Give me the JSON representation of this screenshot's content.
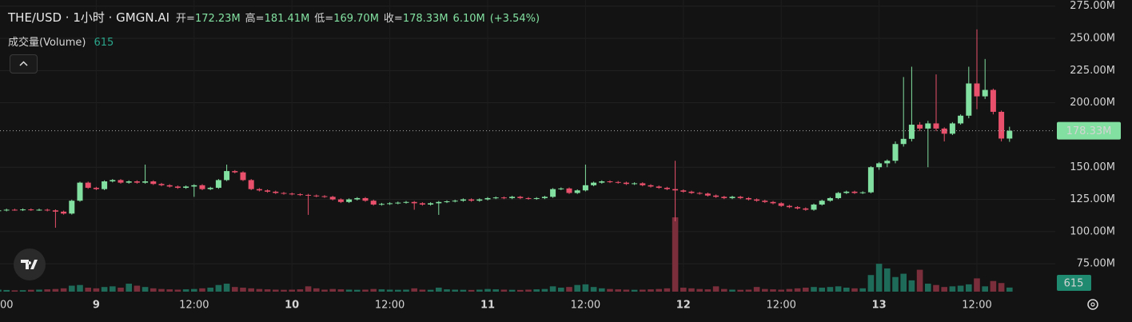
{
  "chart_data": {
    "type": "candlestick",
    "title": "THE/USD · 1小时 · GMGN.AI",
    "ohlc_names": {
      "open": "开=",
      "high": "高=",
      "low": "低=",
      "close": "收="
    },
    "ohlc_labels": {
      "open": "172.23M",
      "high": "181.41M",
      "low": "169.70M",
      "close": "178.33M"
    },
    "change": "6.10M",
    "change_pct": "(+3.54%)",
    "volume_label": "成交量(Volume)",
    "up_color": "#82e0a0",
    "down_color": "#e8506b",
    "volume_up_color": "#1e6b59",
    "volume_down_color": "#7a2d3b",
    "grid": true,
    "ylim": [
      53.4,
      279.8
    ],
    "yticks": [
      {
        "value": 275,
        "label": "275.00M"
      },
      {
        "value": 250,
        "label": "250.00M"
      },
      {
        "value": 225,
        "label": "225.00M"
      },
      {
        "value": 200,
        "label": "200.00M"
      },
      {
        "value": 150,
        "label": "150.00M"
      },
      {
        "value": 125,
        "label": "125.00M"
      },
      {
        "value": 100,
        "label": "100.00M"
      },
      {
        "value": 75,
        "label": "75.00M"
      }
    ],
    "categories": [
      "00",
      null,
      null,
      null,
      null,
      null,
      null,
      null,
      null,
      null,
      null,
      null,
      "9",
      null,
      null,
      null,
      null,
      null,
      null,
      null,
      null,
      null,
      null,
      null,
      "12:00",
      null,
      null,
      null,
      null,
      null,
      null,
      null,
      null,
      null,
      null,
      null,
      "10",
      null,
      null,
      null,
      null,
      null,
      null,
      null,
      null,
      null,
      null,
      null,
      "12:00",
      null,
      null,
      null,
      null,
      null,
      null,
      null,
      null,
      null,
      null,
      null,
      "11",
      null,
      null,
      null,
      null,
      null,
      null,
      null,
      null,
      null,
      null,
      null,
      "12:00",
      null,
      null,
      null,
      null,
      null,
      null,
      null,
      null,
      null,
      null,
      null,
      "12",
      null,
      null,
      null,
      null,
      null,
      null,
      null,
      null,
      null,
      null,
      null,
      "12:00",
      null,
      null,
      null,
      null,
      null,
      null,
      null,
      null,
      null,
      null,
      null,
      "13",
      null,
      null,
      null,
      null,
      null,
      null,
      null,
      null,
      null,
      null,
      null,
      "12:00",
      null,
      null,
      null,
      null
    ],
    "open": [
      116.2,
      116.5,
      117,
      116.8,
      117.2,
      116.9,
      117,
      116.5,
      115.5,
      114,
      124,
      138,
      134,
      133,
      139,
      140,
      138,
      139,
      138,
      139,
      137,
      136,
      135,
      134,
      135,
      136,
      133,
      134,
      140,
      147,
      146,
      140,
      133,
      132,
      131,
      130,
      129.5,
      129,
      128.5,
      128,
      127.5,
      127,
      125,
      123,
      125,
      126,
      124,
      121,
      121.5,
      122,
      122.5,
      123,
      122,
      121,
      122,
      123,
      123.5,
      124,
      125,
      124,
      125,
      126,
      126.5,
      126,
      127,
      126,
      125.5,
      126,
      127,
      133,
      133.5,
      130,
      132,
      136,
      138,
      139,
      138.5,
      138,
      137,
      137.5,
      136,
      135,
      134,
      133,
      132,
      131,
      130,
      129.5,
      128,
      127,
      126,
      127,
      126,
      125,
      124,
      123,
      122,
      120,
      119,
      118,
      117,
      121,
      124,
      126,
      130,
      131,
      130,
      130.5,
      150,
      153,
      155,
      168,
      172,
      183,
      180,
      184,
      180,
      176,
      184,
      190,
      215,
      205,
      210,
      193,
      172.23
    ],
    "high": [
      117.3,
      117.8,
      117.8,
      118,
      118,
      117.8,
      117.8,
      117.3,
      116.3,
      124.8,
      138.8,
      138.8,
      134.8,
      139.8,
      140.8,
      140.8,
      139.8,
      139.8,
      152,
      139.8,
      137.8,
      136.8,
      135.8,
      135.8,
      136.8,
      136.8,
      134.8,
      140.8,
      152,
      147.8,
      146.8,
      140.8,
      133.8,
      132.8,
      131.8,
      130.8,
      130.3,
      129.8,
      129.3,
      128.8,
      128.3,
      127.8,
      125.8,
      125.8,
      126.8,
      126.8,
      124.8,
      122.3,
      122.8,
      123.3,
      123.8,
      123.8,
      122.8,
      122.8,
      123.8,
      124.3,
      124.8,
      125.8,
      125.8,
      125.8,
      126.8,
      127.3,
      127.3,
      127.8,
      127.8,
      126.8,
      126.8,
      127.8,
      133.8,
      134.3,
      134.3,
      132.8,
      152,
      138.8,
      139.8,
      139.8,
      139.3,
      138.8,
      138.3,
      138.3,
      136.8,
      135.8,
      134.8,
      155,
      132.8,
      131.8,
      130.8,
      130.3,
      128.8,
      127.8,
      127.8,
      127.8,
      126.8,
      125.8,
      124.8,
      123.8,
      122.8,
      120.8,
      119.8,
      118.8,
      121.8,
      124.8,
      126.8,
      130.8,
      131.8,
      131.8,
      131.3,
      150.8,
      154,
      156,
      170,
      220,
      228,
      185,
      186,
      222,
      181,
      185,
      191,
      228,
      257,
      234,
      211,
      194,
      181.41
    ],
    "low": [
      115.4,
      115.7,
      116.2,
      116,
      116.1,
      116.1,
      115.7,
      103,
      113.2,
      113.2,
      123.2,
      133.2,
      132.2,
      132.2,
      138.2,
      137.2,
      137.2,
      137.2,
      137.2,
      136.2,
      135.2,
      134.2,
      133.2,
      133.2,
      127,
      132.2,
      132.2,
      133.2,
      139.2,
      145.2,
      139.2,
      132.2,
      131.2,
      130.2,
      129.2,
      128.7,
      128.2,
      127.7,
      113,
      126.7,
      126.2,
      124.2,
      122.2,
      122.2,
      124.2,
      123.2,
      120.2,
      120.2,
      120.7,
      121.2,
      121.7,
      117,
      120.2,
      120.2,
      113,
      122.2,
      122.7,
      123.2,
      123.2,
      123.2,
      124.2,
      125.2,
      125.2,
      125.2,
      125.2,
      124.7,
      124.7,
      125.2,
      126.2,
      132.2,
      129.2,
      129.2,
      131.2,
      135.2,
      137.2,
      137.7,
      137.2,
      136.2,
      136.2,
      135.2,
      134.2,
      133.2,
      132.2,
      108,
      130.2,
      129.2,
      128.7,
      127.2,
      126.2,
      125.2,
      125.2,
      125.2,
      124.2,
      123.2,
      122.2,
      121.2,
      119.2,
      118.2,
      117.2,
      116.2,
      116.2,
      120.2,
      123.2,
      125.2,
      129.2,
      129.2,
      129.2,
      129.7,
      148,
      150,
      153,
      166,
      170,
      178,
      150,
      178,
      170,
      175,
      183,
      188,
      195,
      203,
      191,
      170,
      169.7
    ],
    "close": [
      116.5,
      117,
      116.8,
      117.2,
      116.9,
      117,
      116.5,
      115.5,
      114,
      124,
      138,
      134,
      133,
      139,
      140,
      138,
      139,
      138,
      139,
      137,
      136,
      135,
      134,
      135,
      136,
      133,
      134,
      140,
      147,
      146,
      140,
      133,
      132,
      131,
      130,
      129.5,
      129,
      128.5,
      128,
      127.5,
      127,
      125,
      123,
      125,
      126,
      124,
      121,
      121.5,
      122,
      122.5,
      123,
      122,
      121,
      122,
      123,
      123.5,
      124,
      125,
      124,
      125,
      126,
      126.5,
      126,
      127,
      126,
      125.5,
      126,
      127,
      133,
      133.5,
      130,
      132,
      136,
      138,
      139,
      138.5,
      138,
      137,
      137.5,
      136,
      135,
      134,
      133,
      132,
      131,
      130,
      129.5,
      128,
      127,
      126,
      127,
      126,
      125,
      124,
      123,
      122,
      120,
      119,
      118,
      117,
      121,
      124,
      126,
      130,
      131,
      130,
      130.5,
      150,
      153,
      155,
      168,
      172,
      183,
      180,
      184,
      180,
      176,
      184,
      190,
      215,
      205,
      210,
      193,
      172.23,
      178.33
    ],
    "volume": [
      300,
      250,
      200,
      220,
      280,
      300,
      350,
      400,
      500,
      900,
      1000,
      600,
      500,
      700,
      800,
      600,
      1200,
      900,
      700,
      500,
      400,
      350,
      300,
      350,
      400,
      500,
      600,
      1000,
      1200,
      700,
      600,
      500,
      400,
      350,
      300,
      280,
      300,
      350,
      800,
      500,
      300,
      400,
      350,
      300,
      280,
      300,
      400,
      350,
      300,
      280,
      300,
      500,
      300,
      280,
      600,
      350,
      300,
      280,
      260,
      300,
      400,
      350,
      300,
      280,
      260,
      300,
      350,
      400,
      800,
      600,
      700,
      1000,
      1100,
      700,
      500,
      400,
      350,
      300,
      280,
      300,
      350,
      400,
      500,
      11200,
      600,
      500,
      400,
      350,
      800,
      400,
      300,
      280,
      300,
      700,
      400,
      350,
      300,
      400,
      500,
      600,
      700,
      600,
      700,
      800,
      600,
      500,
      500,
      2500,
      4200,
      3500,
      2200,
      2700,
      1700,
      3300,
      1200,
      1000,
      700,
      800,
      900,
      1100,
      2000,
      800,
      1600,
      1300,
      615
    ]
  }
}
